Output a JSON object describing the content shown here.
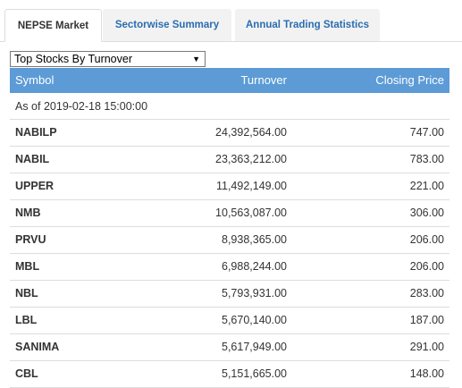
{
  "tabs": [
    {
      "label": "NEPSE Market",
      "active": true
    },
    {
      "label": "Sectorwise Summary",
      "active": false
    },
    {
      "label": "Annual Trading Statistics",
      "active": false
    }
  ],
  "selector": {
    "value": "Top Stocks By Turnover"
  },
  "table": {
    "headers": {
      "symbol": "Symbol",
      "turnover": "Turnover",
      "closing": "Closing Price"
    },
    "as_of": "As of 2019-02-18 15:00:00",
    "rows": [
      {
        "symbol": "NABILP",
        "turnover": "24,392,564.00",
        "closing": "747.00"
      },
      {
        "symbol": "NABIL",
        "turnover": "23,363,212.00",
        "closing": "783.00"
      },
      {
        "symbol": "UPPER",
        "turnover": "11,492,149.00",
        "closing": "221.00"
      },
      {
        "symbol": "NMB",
        "turnover": "10,563,087.00",
        "closing": "306.00"
      },
      {
        "symbol": "PRVU",
        "turnover": "8,938,365.00",
        "closing": "206.00"
      },
      {
        "symbol": "MBL",
        "turnover": "6,988,244.00",
        "closing": "206.00"
      },
      {
        "symbol": "NBL",
        "turnover": "5,793,931.00",
        "closing": "283.00"
      },
      {
        "symbol": "LBL",
        "turnover": "5,670,140.00",
        "closing": "187.00"
      },
      {
        "symbol": "SANIMA",
        "turnover": "5,617,949.00",
        "closing": "291.00"
      },
      {
        "symbol": "CBL",
        "turnover": "5,151,665.00",
        "closing": "148.00"
      }
    ]
  },
  "colors": {
    "header_bg": "#5c9bd6",
    "tab_link": "#2a6db0"
  }
}
